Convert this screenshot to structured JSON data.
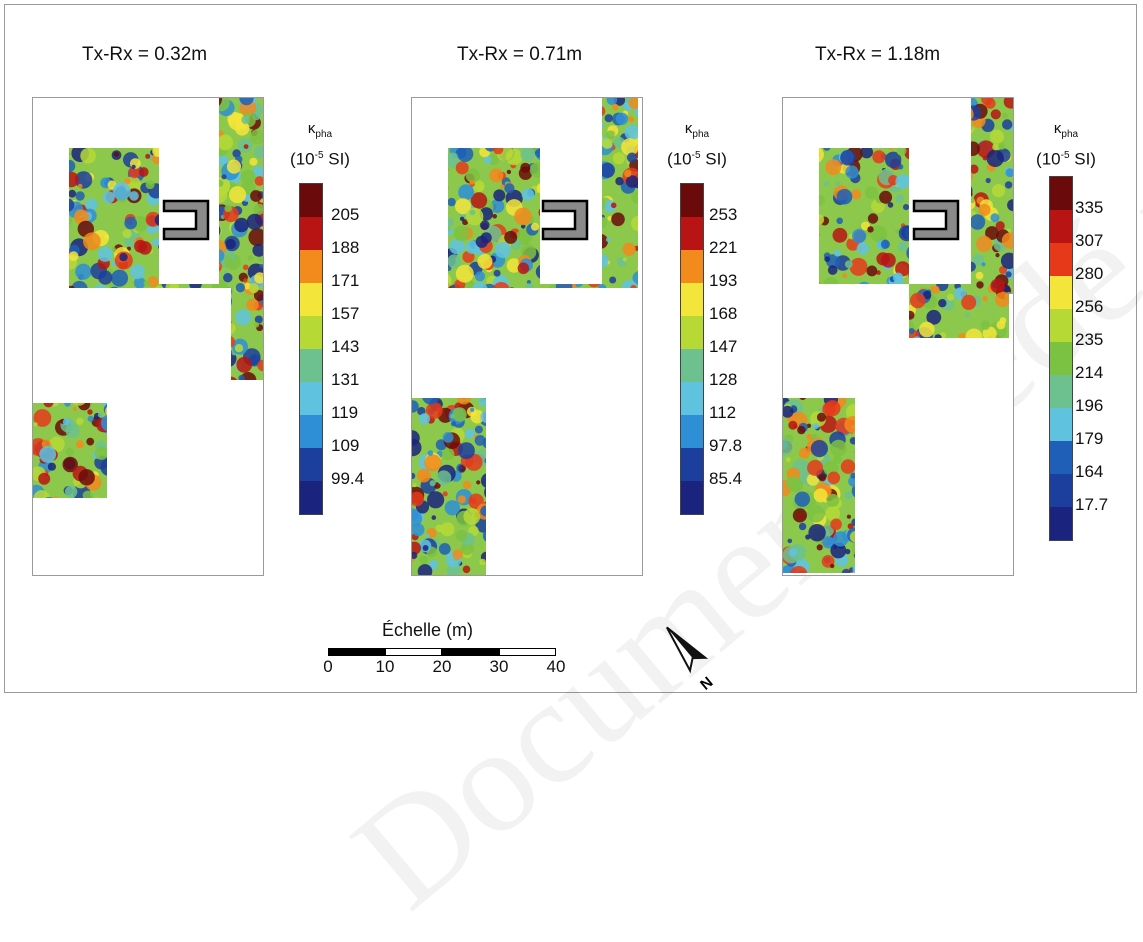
{
  "panels": [
    {
      "title": "Tx-Rx = 0.32m",
      "legend": {
        "symbol": "κ",
        "symbol_sub": "pha",
        "units_pre": "(10",
        "units_sup": "-5",
        "units_post": " SI)",
        "labels": [
          "205",
          "188",
          "171",
          "157",
          "143",
          "131",
          "119",
          "109",
          "99.4"
        ]
      }
    },
    {
      "title": "Tx-Rx = 0.71m",
      "legend": {
        "symbol": "κ",
        "symbol_sub": "pha",
        "units_pre": "(10",
        "units_sup": "-5",
        "units_post": " SI)",
        "labels": [
          "253",
          "221",
          "193",
          "168",
          "147",
          "128",
          "112",
          "97.8",
          "85.4"
        ]
      }
    },
    {
      "title": "Tx-Rx = 1.18m",
      "legend": {
        "symbol": "κ",
        "symbol_sub": "pha",
        "units_pre": "(10",
        "units_sup": "-5",
        "units_post": " SI)",
        "labels": [
          "335",
          "307",
          "280",
          "256",
          "235",
          "214",
          "196",
          "179",
          "164",
          "17.7"
        ]
      }
    }
  ],
  "colorscale": [
    "#6b0a0a",
    "#b81414",
    "#e5391a",
    "#f28a1c",
    "#f3e53a",
    "#b6d936",
    "#7cc242",
    "#6cc18f",
    "#5fc3e0",
    "#2f8fd6",
    "#1f5fb8",
    "#1c3f9e",
    "#1a237e"
  ],
  "scale_bar": {
    "title": "Échelle (m)",
    "ticks": [
      "0",
      "10",
      "20",
      "30",
      "40"
    ]
  },
  "north_label": "N",
  "watermark": "Document Cédé par l'auteur"
}
